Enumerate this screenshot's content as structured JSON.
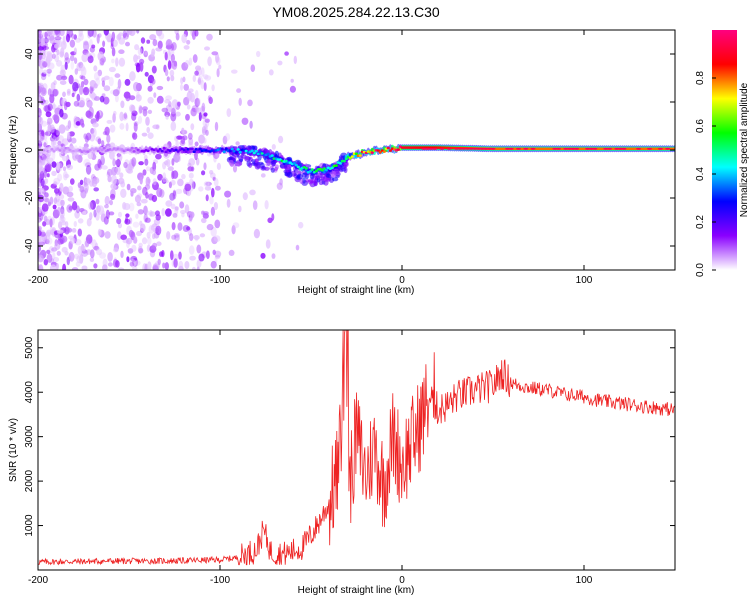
{
  "title": "YM08.2025.284.22.13.C30",
  "chart_data": [
    {
      "type": "heatmap",
      "title": "YM08.2025.284.22.13.C30",
      "xlabel": "Height of straight line (km)",
      "ylabel": "Frequency (Hz)",
      "xlim": [
        -200,
        150
      ],
      "ylim": [
        -50,
        50
      ],
      "xticks": [
        -200,
        -100,
        0,
        100
      ],
      "yticks": [
        -40,
        -20,
        0,
        20,
        40
      ],
      "colorbar": {
        "label": "Normalized spectral amplitude",
        "range": [
          0,
          1
        ],
        "ticks": [
          "0.0",
          "0.2",
          "0.4",
          "0.6",
          "0.8"
        ],
        "colormap": [
          "#ffffff",
          "#8a00ff",
          "#0000ff",
          "#00ffff",
          "#00ff00",
          "#ffff00",
          "#ff0000",
          "#ff007f"
        ]
      },
      "ridge": {
        "x": [
          -200,
          -150,
          -100,
          -80,
          -70,
          -60,
          -50,
          -40,
          -30,
          -20,
          -10,
          0,
          20,
          50,
          100,
          150
        ],
        "frequency": [
          0,
          0,
          0,
          -1,
          -3,
          -6,
          -9,
          -8,
          -3,
          -1,
          0,
          1,
          1,
          0.5,
          0.5,
          0.5
        ],
        "amplitude": [
          0.05,
          0.08,
          0.3,
          0.4,
          0.45,
          0.45,
          0.5,
          0.5,
          0.55,
          0.8,
          0.85,
          0.9,
          0.85,
          0.8,
          0.8,
          0.8
        ]
      }
    },
    {
      "type": "line",
      "xlabel": "Height of straight line (km)",
      "ylabel": "SNR (10 * v/v)",
      "xlim": [
        -200,
        150
      ],
      "ylim": [
        0,
        5400
      ],
      "xticks": [
        -200,
        -100,
        0,
        100
      ],
      "yticks": [
        1000,
        2000,
        3000,
        4000,
        5000
      ],
      "series": [
        {
          "name": "SNR",
          "color": "#ee2222",
          "x": [
            -200,
            -180,
            -160,
            -140,
            -120,
            -100,
            -90,
            -80,
            -76,
            -72,
            -65,
            -55,
            -48,
            -40,
            -35,
            -31,
            -29,
            -25,
            -20,
            -15,
            -10,
            -5,
            0,
            5,
            10,
            15,
            20,
            25,
            30,
            40,
            50,
            55,
            60,
            70,
            80,
            90,
            100,
            110,
            120,
            130,
            140,
            150
          ],
          "y": [
            180,
            190,
            200,
            200,
            210,
            230,
            280,
            450,
            900,
            400,
            350,
            500,
            900,
            1500,
            2200,
            4700,
            1800,
            3100,
            2100,
            2800,
            1900,
            3000,
            2400,
            2800,
            3300,
            3900,
            3600,
            3700,
            3900,
            4050,
            4150,
            4450,
            4200,
            4100,
            4050,
            3950,
            3900,
            3800,
            3750,
            3700,
            3650,
            3600
          ]
        }
      ]
    }
  ]
}
